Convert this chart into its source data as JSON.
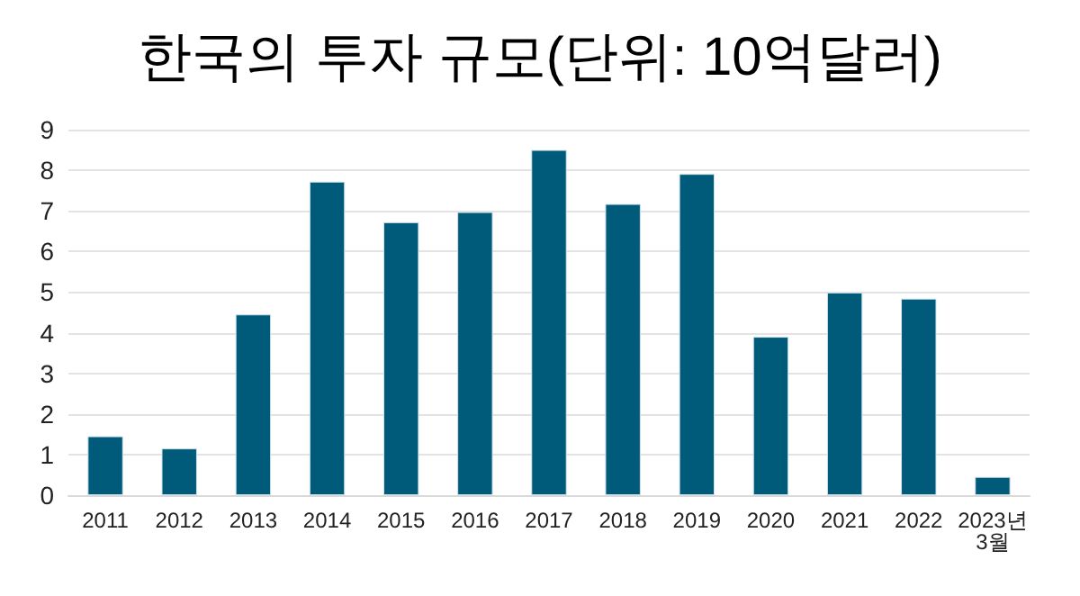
{
  "chart_data": {
    "type": "bar",
    "title": "한국의 투자 규모(단위: 10억달러)",
    "categories": [
      "2011",
      "2012",
      "2013",
      "2014",
      "2015",
      "2016",
      "2017",
      "2018",
      "2019",
      "2020",
      "2021",
      "2022",
      "2023년\n3월"
    ],
    "values": [
      1.45,
      1.15,
      4.45,
      7.72,
      6.72,
      6.97,
      8.5,
      7.17,
      7.91,
      3.9,
      4.99,
      4.84,
      0.45
    ],
    "color": "#005a7a",
    "ylim": [
      0,
      9
    ],
    "yticks": [
      0,
      1,
      2,
      3,
      4,
      5,
      6,
      7,
      8,
      9
    ],
    "grid": "y"
  }
}
